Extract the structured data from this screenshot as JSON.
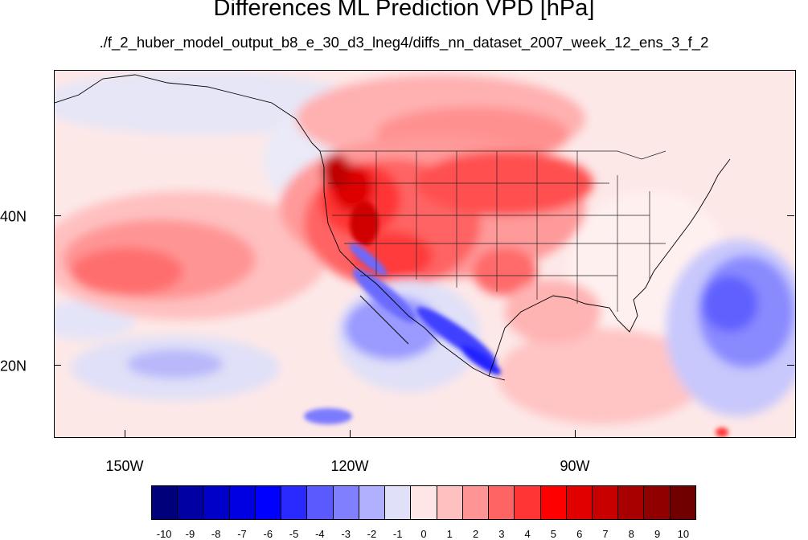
{
  "title": "Differences ML Prediction VPD [hPa]",
  "subtitle": "./f_2_huber_model_output_b8_e_30_d3_lneg4/diffs_nn_dataset_2007_week_12_ens_3_f_2",
  "map": {
    "lon_labels": [
      "150W",
      "120W",
      "90W"
    ],
    "lat_labels": [
      "40N",
      "20N"
    ],
    "lon_range": [
      -159.3,
      -61.0
    ],
    "lat_range": [
      10.5,
      59.5
    ]
  },
  "colorbar": {
    "labels": [
      "-10",
      "-9",
      "-8",
      "-7",
      "-6",
      "-5",
      "-4",
      "-3",
      "-2",
      "-1",
      "0",
      "1",
      "2",
      "3",
      "4",
      "5",
      "6",
      "7",
      "8",
      "9",
      "10"
    ],
    "colors": [
      "#00007a",
      "#0000a3",
      "#0000c8",
      "#0000e0",
      "#0000ff",
      "#2a2aff",
      "#5a5aff",
      "#8080ff",
      "#b0b0ff",
      "#e0e0f8",
      "#ffe6e6",
      "#ffc0c0",
      "#ff9494",
      "#ff6464",
      "#ff3434",
      "#ff0000",
      "#e00000",
      "#c80000",
      "#a80000",
      "#900000",
      "#700000"
    ]
  }
}
